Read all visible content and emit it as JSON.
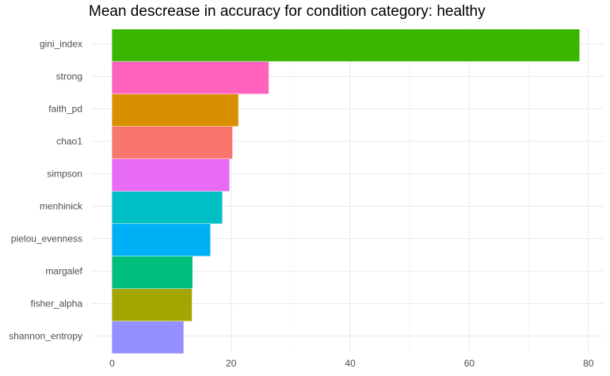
{
  "chart_data": {
    "type": "bar",
    "orientation": "horizontal",
    "title": "Mean descrease in accuracy for condition category: healthy",
    "xlabel": "",
    "ylabel": "",
    "xlim": [
      0,
      82
    ],
    "x_ticks": [
      0,
      20,
      40,
      60,
      80
    ],
    "grid": true,
    "legend": "none",
    "categories": [
      "gini_index",
      "strong",
      "faith_pd",
      "chao1",
      "simpson",
      "menhinick",
      "pielou_evenness",
      "margalef",
      "fisher_alpha",
      "shannon_entropy"
    ],
    "values": [
      78.5,
      26.3,
      21.2,
      20.2,
      19.7,
      18.5,
      16.5,
      13.5,
      13.4,
      12.0
    ],
    "colors": [
      "#39B600",
      "#FF62BC",
      "#D89000",
      "#F8766D",
      "#E76BF3",
      "#00BFC4",
      "#00B0F6",
      "#00BF7D",
      "#A3A500",
      "#9590FF"
    ]
  }
}
